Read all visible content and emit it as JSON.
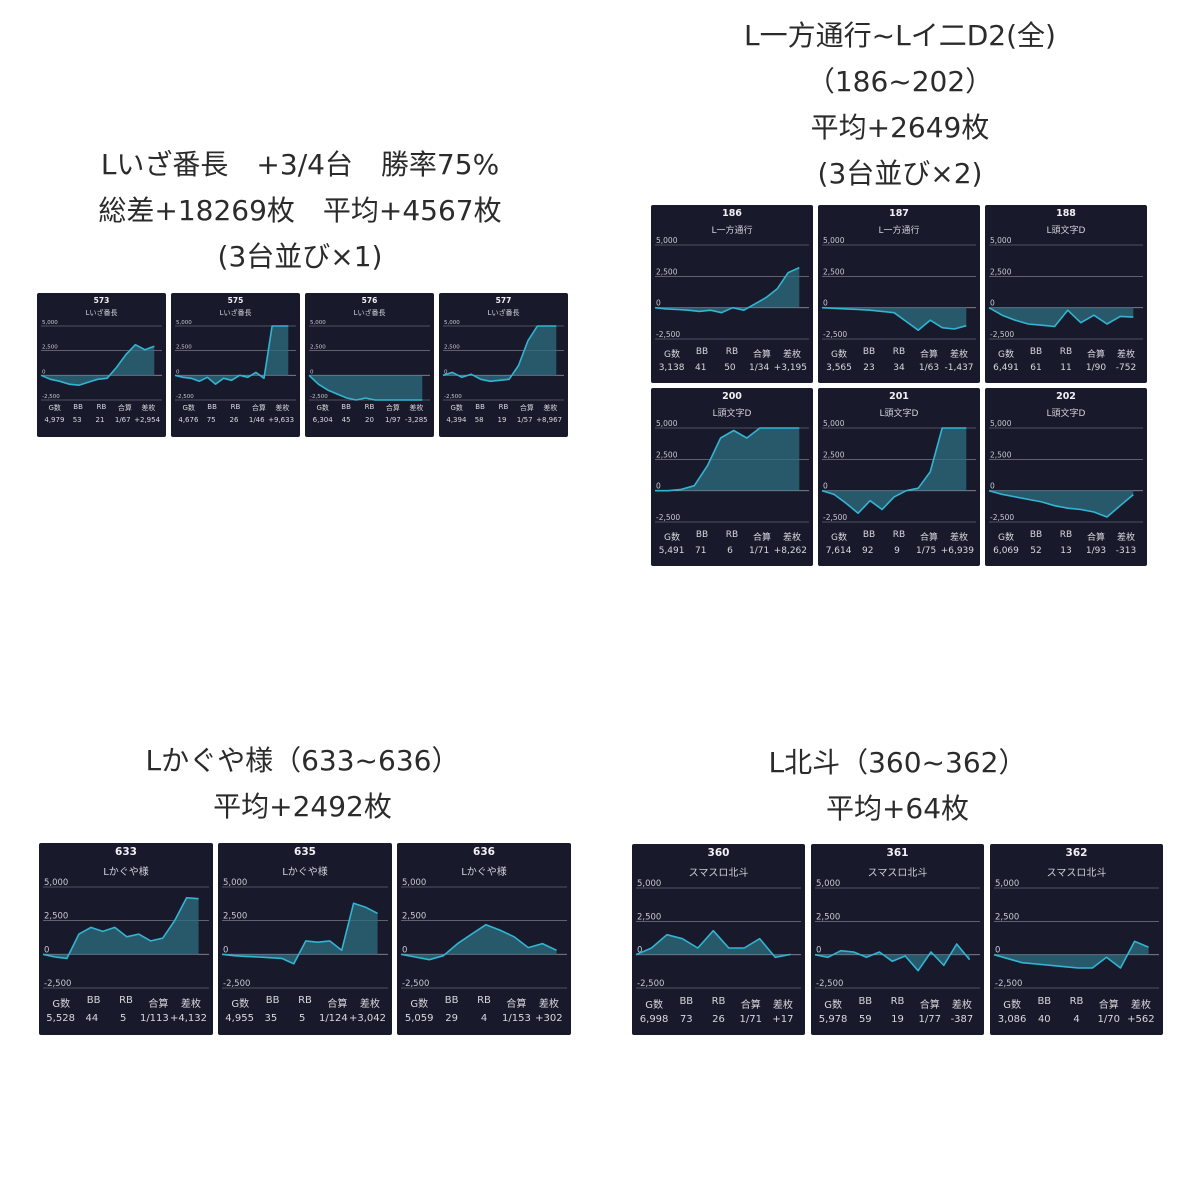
{
  "stat_headers": [
    "G数",
    "BB",
    "RB",
    "合算",
    "差枚"
  ],
  "colors": {
    "card_bg": "#181a2b",
    "line": "#32b4d2",
    "fill": "#2e6f80",
    "grid": "#8a8a98"
  },
  "sections": [
    {
      "id": "izabancho",
      "heading": [
        "Lいざ番長　+3/4台　勝率75%",
        "総差+18269枚　平均+4567枚",
        "(3台並び×1)"
      ]
    },
    {
      "id": "ippou",
      "heading": [
        "L一方通行~Lイ二D2(全)",
        "（186~202）",
        "平均+2649枚",
        "(3台並び×2)"
      ]
    },
    {
      "id": "kaguya",
      "heading": [
        "Lかぐや様（633~636）",
        "平均+2492枚"
      ]
    },
    {
      "id": "hokuto",
      "heading": [
        "L北斗（360~362）",
        "平均+64枚"
      ]
    }
  ],
  "chart_data": [
    {
      "type": "area",
      "section": "izabancho",
      "machine_no": "573",
      "machine_name": "Lいざ番長",
      "ylim": [
        -2500,
        5000
      ],
      "yticks": [
        "5,000",
        "2,500",
        "0",
        "-2,500"
      ],
      "values": [
        0,
        -400,
        -600,
        -900,
        -1000,
        -700,
        -400,
        -300,
        800,
        2100,
        3100,
        2600,
        2954
      ],
      "stats": [
        "4,979",
        "53",
        "21",
        "1/67",
        "+2,954"
      ]
    },
    {
      "type": "area",
      "section": "izabancho",
      "machine_no": "575",
      "machine_name": "Lいざ番長",
      "ylim": [
        -2500,
        5000
      ],
      "yticks": [
        "5,000",
        "2,500",
        "0",
        "-2,500"
      ],
      "values": [
        0,
        -200,
        -300,
        -600,
        -200,
        -900,
        -300,
        -500,
        0,
        -200,
        300,
        -300,
        5000,
        5000,
        5000
      ],
      "stats": [
        "4,676",
        "75",
        "26",
        "1/46",
        "+9,633"
      ]
    },
    {
      "type": "area",
      "section": "izabancho",
      "machine_no": "576",
      "machine_name": "Lいざ番長",
      "ylim": [
        -2500,
        5000
      ],
      "yticks": [
        "5,000",
        "2,500",
        "0",
        "-2,500"
      ],
      "values": [
        0,
        -900,
        -1500,
        -1900,
        -2300,
        -2500,
        -2300,
        -2500,
        -2500,
        -2500,
        -2500,
        -2500,
        -2500
      ],
      "stats": [
        "6,304",
        "45",
        "20",
        "1/97",
        "-3,285"
      ]
    },
    {
      "type": "area",
      "section": "izabancho",
      "machine_no": "577",
      "machine_name": "Lいざ番長",
      "ylim": [
        -2500,
        5000
      ],
      "yticks": [
        "5,000",
        "2,500",
        "0",
        "-2,500"
      ],
      "values": [
        0,
        300,
        -200,
        100,
        -400,
        -600,
        -500,
        -400,
        1000,
        3500,
        5000,
        5000,
        5000
      ],
      "stats": [
        "4,394",
        "58",
        "19",
        "1/57",
        "+8,967"
      ]
    },
    {
      "type": "area",
      "section": "ippou",
      "machine_no": "186",
      "machine_name": "L一方通行",
      "ylim": [
        -2500,
        5000
      ],
      "yticks": [
        "5,000",
        "2,500",
        "0",
        "-2,500"
      ],
      "values": [
        0,
        -100,
        -150,
        -200,
        -300,
        -200,
        -400,
        0,
        -200,
        300,
        800,
        1500,
        2800,
        3195
      ],
      "stats": [
        "3,138",
        "41",
        "50",
        "1/34",
        "+3,195"
      ]
    },
    {
      "type": "area",
      "section": "ippou",
      "machine_no": "187",
      "machine_name": "L一方通行",
      "ylim": [
        -2500,
        5000
      ],
      "yticks": [
        "5,000",
        "2,500",
        "0",
        "-2,500"
      ],
      "values": [
        0,
        -50,
        -100,
        -150,
        -200,
        -300,
        -400,
        -1100,
        -1800,
        -1000,
        -1600,
        -1700,
        -1437
      ],
      "stats": [
        "3,565",
        "23",
        "34",
        "1/63",
        "-1,437"
      ]
    },
    {
      "type": "area",
      "section": "ippou",
      "machine_no": "188",
      "machine_name": "L頭文字D",
      "ylim": [
        -2500,
        5000
      ],
      "yticks": [
        "5,000",
        "2,500",
        "0",
        "-2,500"
      ],
      "values": [
        0,
        -600,
        -1000,
        -1300,
        -1400,
        -1500,
        -200,
        -1200,
        -600,
        -1300,
        -700,
        -752
      ],
      "stats": [
        "6,491",
        "61",
        "11",
        "1/90",
        "-752"
      ]
    },
    {
      "type": "area",
      "section": "ippou",
      "machine_no": "200",
      "machine_name": "L頭文字D",
      "ylim": [
        -2500,
        5000
      ],
      "yticks": [
        "5,000",
        "2,500",
        "0",
        "-2,500"
      ],
      "values": [
        0,
        0,
        100,
        400,
        2000,
        4200,
        4800,
        4200,
        5000,
        5000,
        5000,
        5000
      ],
      "stats": [
        "5,491",
        "71",
        "6",
        "1/71",
        "+8,262"
      ]
    },
    {
      "type": "area",
      "section": "ippou",
      "machine_no": "201",
      "machine_name": "L頭文字D",
      "ylim": [
        -2500,
        5000
      ],
      "yticks": [
        "5,000",
        "2,500",
        "0",
        "-2,500"
      ],
      "values": [
        0,
        -300,
        -1000,
        -1800,
        -800,
        -1500,
        -500,
        0,
        200,
        1500,
        5000,
        5000,
        5000
      ],
      "stats": [
        "7,614",
        "92",
        "9",
        "1/75",
        "+6,939"
      ]
    },
    {
      "type": "area",
      "section": "ippou",
      "machine_no": "202",
      "machine_name": "L頭文字D",
      "ylim": [
        -2500,
        5000
      ],
      "yticks": [
        "5,000",
        "2,500",
        "0",
        "-2,500"
      ],
      "values": [
        0,
        -300,
        -500,
        -700,
        -900,
        -1200,
        -1400,
        -1500,
        -1700,
        -2100,
        -1200,
        -313
      ],
      "stats": [
        "6,069",
        "52",
        "13",
        "1/93",
        "-313"
      ]
    },
    {
      "type": "area",
      "section": "kaguya",
      "machine_no": "633",
      "machine_name": "Lかぐや様",
      "ylim": [
        -2500,
        5000
      ],
      "yticks": [
        "5,000",
        "2,500",
        "0",
        "-2,500"
      ],
      "values": [
        0,
        -200,
        -300,
        1500,
        2000,
        1700,
        2000,
        1300,
        1500,
        1000,
        1200,
        2500,
        4200,
        4132
      ],
      "stats": [
        "5,528",
        "44",
        "5",
        "1/113",
        "+4,132"
      ]
    },
    {
      "type": "area",
      "section": "kaguya",
      "machine_no": "635",
      "machine_name": "Lかぐや様",
      "ylim": [
        -2500,
        5000
      ],
      "yticks": [
        "5,000",
        "2,500",
        "0",
        "-2,500"
      ],
      "values": [
        0,
        -100,
        -150,
        -200,
        -250,
        -300,
        -700,
        1000,
        900,
        1000,
        300,
        3800,
        3500,
        3042
      ],
      "stats": [
        "4,955",
        "35",
        "5",
        "1/124",
        "+3,042"
      ]
    },
    {
      "type": "area",
      "section": "kaguya",
      "machine_no": "636",
      "machine_name": "Lかぐや様",
      "ylim": [
        -2500,
        5000
      ],
      "yticks": [
        "5,000",
        "2,500",
        "0",
        "-2,500"
      ],
      "values": [
        0,
        -200,
        -400,
        -100,
        800,
        1500,
        2200,
        1800,
        1300,
        500,
        800,
        302
      ],
      "stats": [
        "5,059",
        "29",
        "4",
        "1/153",
        "+302"
      ]
    },
    {
      "type": "area",
      "section": "hokuto",
      "machine_no": "360",
      "machine_name": "スマスロ北斗",
      "ylim": [
        -2500,
        5000
      ],
      "yticks": [
        "5,000",
        "2,500",
        "0",
        "-2,500"
      ],
      "values": [
        0,
        500,
        1500,
        1200,
        500,
        1800,
        500,
        500,
        1200,
        -200,
        17
      ],
      "stats": [
        "6,998",
        "73",
        "26",
        "1/71",
        "+17"
      ]
    },
    {
      "type": "area",
      "section": "hokuto",
      "machine_no": "361",
      "machine_name": "スマスロ北斗",
      "ylim": [
        -2500,
        5000
      ],
      "yticks": [
        "5,000",
        "2,500",
        "0",
        "-2,500"
      ],
      "values": [
        0,
        -200,
        300,
        200,
        -200,
        200,
        -500,
        -100,
        -1200,
        200,
        -800,
        800,
        -387
      ],
      "stats": [
        "5,978",
        "59",
        "19",
        "1/77",
        "-387"
      ]
    },
    {
      "type": "area",
      "section": "hokuto",
      "machine_no": "362",
      "machine_name": "スマスロ北斗",
      "ylim": [
        -2500,
        5000
      ],
      "yticks": [
        "5,000",
        "2,500",
        "0",
        "-2,500"
      ],
      "values": [
        0,
        -300,
        -600,
        -700,
        -800,
        -900,
        -1000,
        -1000,
        -200,
        -1000,
        1000,
        562
      ],
      "stats": [
        "3,086",
        "40",
        "4",
        "1/70",
        "+562"
      ]
    }
  ]
}
